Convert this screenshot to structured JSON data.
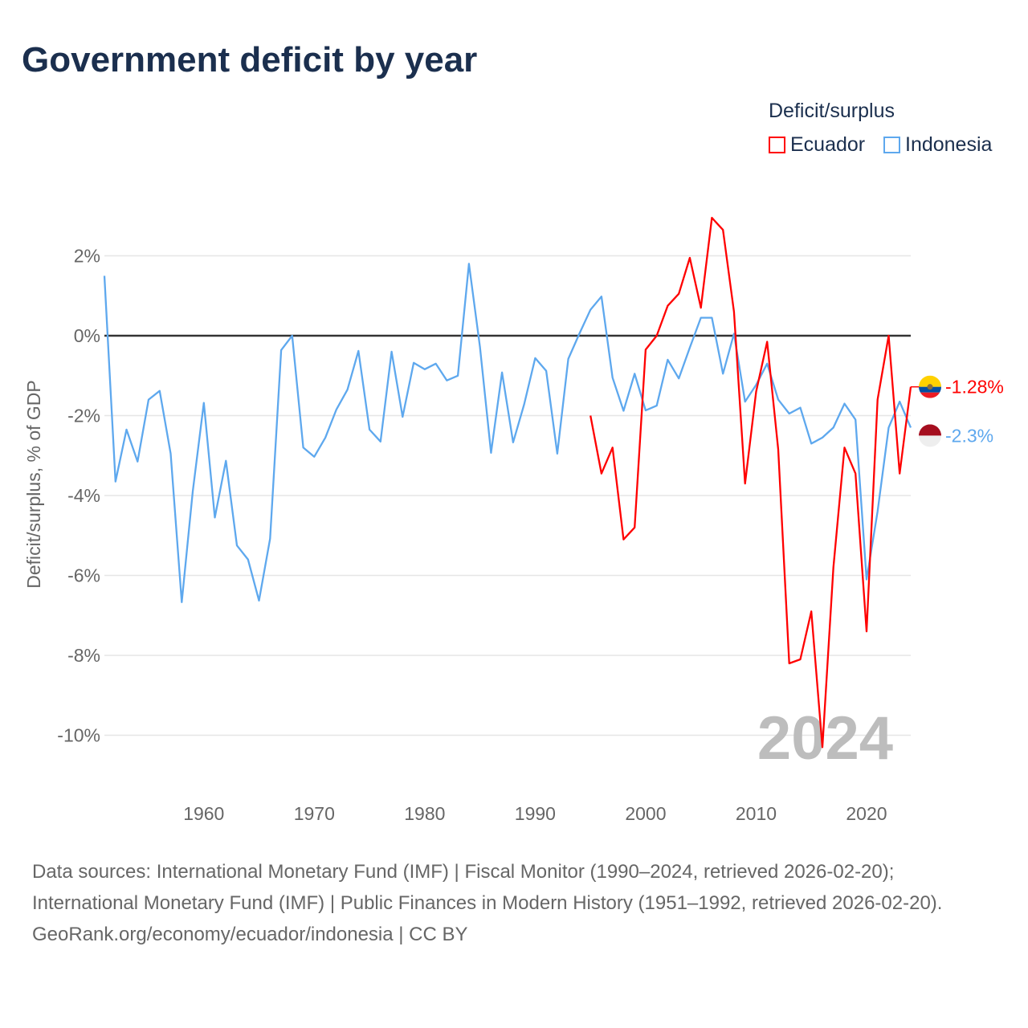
{
  "title": "Government deficit by year",
  "legend": {
    "title": "Deficit/surplus",
    "items": [
      {
        "label": "Ecuador",
        "color": "#ff0000"
      },
      {
        "label": "Indonesia",
        "color": "#5ea8ee"
      }
    ]
  },
  "footer": {
    "sources": "Data sources: International Monetary Fund (IMF) | Fiscal Monitor (1990–2024, retrieved 2026-02-20); International Monetary Fund (IMF) | Public Finances in Modern History (1951–1992, retrieved 2026-02-20).",
    "credit": "GeoRank.org/economy/ecuador/indonesia | CC BY"
  },
  "chart_data": {
    "type": "line",
    "title": "Government deficit by year",
    "ylabel": "Deficit/surplus, % of GDP",
    "xlabel": "",
    "xlim": [
      1951,
      2024
    ],
    "ylim": [
      -11,
      3
    ],
    "xticks": [
      1960,
      1970,
      1980,
      1990,
      2000,
      2010,
      2020
    ],
    "yticks": [
      {
        "v": 2,
        "label": "2%"
      },
      {
        "v": 0,
        "label": "0%"
      },
      {
        "v": -2,
        "label": "-2%"
      },
      {
        "v": -4,
        "label": "-4%"
      },
      {
        "v": -6,
        "label": "-6%"
      },
      {
        "v": -8,
        "label": "-8%"
      },
      {
        "v": -10,
        "label": "-10%"
      }
    ],
    "year_watermark": "2024",
    "series": [
      {
        "name": "Ecuador",
        "color": "#ff0000",
        "end_label": "-1.28%",
        "start": 1995,
        "values": [
          -2.0,
          -3.45,
          -2.8,
          -5.1,
          -4.8,
          -0.35,
          0.0,
          0.75,
          1.05,
          1.95,
          0.7,
          2.95,
          2.65,
          0.6,
          -3.7,
          -1.4,
          -0.15,
          -2.85,
          -8.2,
          -8.1,
          -6.9,
          -10.3,
          -5.8,
          -2.8,
          -3.45,
          -7.4,
          -1.6,
          0.0,
          -3.45,
          -1.28
        ]
      },
      {
        "name": "Indonesia",
        "color": "#5ea8ee",
        "end_label": "-2.3%",
        "start": 1951,
        "values": [
          1.5,
          -3.65,
          -2.35,
          -3.15,
          -1.6,
          -1.38,
          -2.95,
          -6.67,
          -3.9,
          -1.68,
          -4.55,
          -3.13,
          -5.25,
          -5.6,
          -6.63,
          -5.08,
          -0.36,
          0.0,
          -2.8,
          -3.03,
          -2.55,
          -1.85,
          -1.35,
          -0.38,
          -2.35,
          -2.65,
          -0.4,
          -2.03,
          -0.68,
          -0.84,
          -0.7,
          -1.12,
          -1.0,
          1.8,
          -0.28,
          -2.93,
          -0.92,
          -2.67,
          -1.72,
          -0.56,
          -0.88,
          -2.95,
          -0.58,
          0.05,
          0.65,
          0.98,
          -1.05,
          -1.88,
          -0.95,
          -1.87,
          -1.75,
          -0.6,
          -1.07,
          -0.3,
          0.45,
          0.45,
          -0.95,
          0.05,
          -1.65,
          -1.23,
          -0.7,
          -1.6,
          -1.95,
          -1.8,
          -2.7,
          -2.55,
          -2.3,
          -1.7,
          -2.1,
          -6.1,
          -4.4,
          -2.3,
          -1.65,
          -2.3
        ]
      }
    ]
  }
}
